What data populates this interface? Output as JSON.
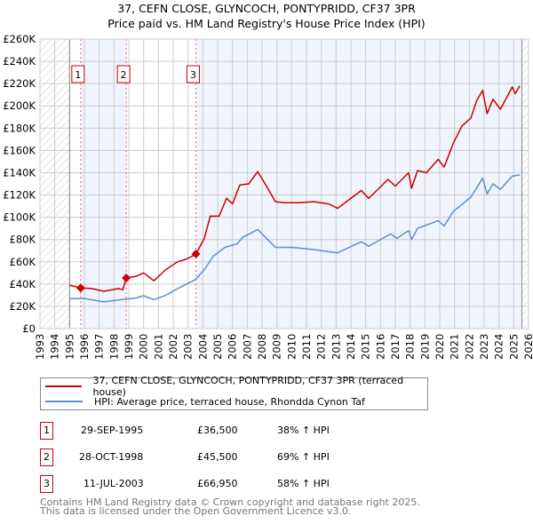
{
  "title": "37, CEFN CLOSE, GLYNCOCH, PONTYPRIDD, CF37 3PR",
  "subtitle": "Price paid vs. HM Land Registry's House Price Index (HPI)",
  "colors": {
    "price": "#cc0000",
    "hpi": "#5b8fd4",
    "grid": "#cccccc",
    "shade": "#f0f4fc"
  },
  "chart_data": {
    "type": "line",
    "title": "37, CEFN CLOSE, GLYNCOCH, PONTYPRIDD, CF37 3PR",
    "xlim": [
      1993,
      2026
    ],
    "ylim": [
      0,
      260000
    ],
    "x_ticks": [
      "1993",
      "1994",
      "1995",
      "1996",
      "1997",
      "1998",
      "1999",
      "2000",
      "2001",
      "2002",
      "2003",
      "2004",
      "2005",
      "2006",
      "2007",
      "2008",
      "2009",
      "2010",
      "2011",
      "2012",
      "2013",
      "2014",
      "2015",
      "2016",
      "2017",
      "2018",
      "2019",
      "2020",
      "2021",
      "2022",
      "2023",
      "2024",
      "2025",
      "2026"
    ],
    "y_ticks": [
      {
        "v": 0,
        "label": "£0"
      },
      {
        "v": 20000,
        "label": "£20K"
      },
      {
        "v": 40000,
        "label": "£40K"
      },
      {
        "v": 60000,
        "label": "£60K"
      },
      {
        "v": 80000,
        "label": "£80K"
      },
      {
        "v": 100000,
        "label": "£100K"
      },
      {
        "v": 120000,
        "label": "£120K"
      },
      {
        "v": 140000,
        "label": "£140K"
      },
      {
        "v": 160000,
        "label": "£160K"
      },
      {
        "v": 180000,
        "label": "£180K"
      },
      {
        "v": 200000,
        "label": "£200K"
      },
      {
        "v": 220000,
        "label": "£220K"
      },
      {
        "v": 240000,
        "label": "£240K"
      },
      {
        "v": 260000,
        "label": "£260K"
      }
    ],
    "grid": true,
    "series": [
      {
        "name": "37, CEFN CLOSE, GLYNCOCH, PONTYPRIDD, CF37 3PR (terraced house)",
        "x": [
          1995.0,
          1995.75,
          1996.5,
          1997.3,
          1998.3,
          1998.6,
          1998.83,
          1999.5,
          2000.0,
          2000.7,
          2001.5,
          2002.3,
          2003.0,
          2003.53,
          2004.1,
          2004.5,
          2005.1,
          2005.6,
          2006.0,
          2006.5,
          2007.1,
          2007.7,
          2008.3,
          2008.9,
          2009.5,
          2010.5,
          2011.5,
          2012.5,
          2013.1,
          2013.9,
          2014.7,
          2015.2,
          2015.9,
          2016.5,
          2017.0,
          2017.9,
          2018.1,
          2018.5,
          2019.1,
          2019.9,
          2020.3,
          2020.9,
          2021.5,
          2022.1,
          2022.5,
          2022.9,
          2023.2,
          2023.6,
          2024.1,
          2024.9,
          2025.1,
          2025.4
        ],
        "y": [
          39000,
          36500,
          36000,
          33500,
          36000,
          35000,
          45500,
          47000,
          50000,
          43000,
          53000,
          60000,
          63000,
          66950,
          81000,
          101000,
          101000,
          117000,
          112000,
          129000,
          130000,
          141000,
          128000,
          114000,
          113000,
          113000,
          114000,
          112000,
          108000,
          116000,
          124000,
          117000,
          126000,
          134000,
          128000,
          140000,
          126000,
          142000,
          140000,
          152000,
          145000,
          166000,
          182000,
          189000,
          205000,
          214000,
          193000,
          206000,
          197000,
          217000,
          211000,
          218000
        ]
      },
      {
        "name": "HPI: Average price, terraced house, Rhondda Cynon Taf",
        "x": [
          1995.0,
          1996.0,
          1997.3,
          1998.5,
          1999.5,
          2000.0,
          2000.7,
          2001.5,
          2002.3,
          2003.5,
          2004.1,
          2004.7,
          2005.5,
          2006.3,
          2006.7,
          2007.7,
          2008.3,
          2008.9,
          2010.0,
          2011.5,
          2013.1,
          2014.7,
          2015.2,
          2016.7,
          2017.1,
          2017.9,
          2018.1,
          2018.5,
          2019.9,
          2020.3,
          2020.9,
          2022.1,
          2022.9,
          2023.2,
          2023.6,
          2024.1,
          2024.9,
          2025.4
        ],
        "y": [
          27000,
          27000,
          24000,
          26000,
          27500,
          29500,
          26000,
          30000,
          36000,
          44000,
          53000,
          65000,
          73000,
          76000,
          82000,
          89000,
          81000,
          73000,
          73000,
          71000,
          68000,
          78000,
          74000,
          85000,
          81000,
          88000,
          80000,
          90000,
          97000,
          92000,
          105000,
          118000,
          135000,
          121000,
          130000,
          125000,
          137000,
          138000
        ]
      }
    ],
    "sales": [
      {
        "label": "1",
        "x": 1995.75,
        "y": 36500
      },
      {
        "label": "2",
        "x": 1998.83,
        "y": 45500
      },
      {
        "label": "3",
        "x": 2003.53,
        "y": 66950
      }
    ],
    "data_end": 2025.55,
    "legend_placement": "below"
  },
  "legend": [
    {
      "label": "37, CEFN CLOSE, GLYNCOCH, PONTYPRIDD, CF37 3PR (terraced house)"
    },
    {
      "label": "HPI: Average price, terraced house, Rhondda Cynon Taf"
    }
  ],
  "transactions": [
    {
      "num": "1",
      "date": "29-SEP-1995",
      "price": "£36,500",
      "hpi": "38% ↑ HPI"
    },
    {
      "num": "2",
      "date": "28-OCT-1998",
      "price": "£45,500",
      "hpi": "69% ↑ HPI"
    },
    {
      "num": "3",
      "date": "11-JUL-2003",
      "price": "£66,950",
      "hpi": "58% ↑ HPI"
    }
  ],
  "footer": [
    "Contains HM Land Registry data © Crown copyright and database right 2025.",
    "This data is licensed under the Open Government Licence v3.0."
  ]
}
